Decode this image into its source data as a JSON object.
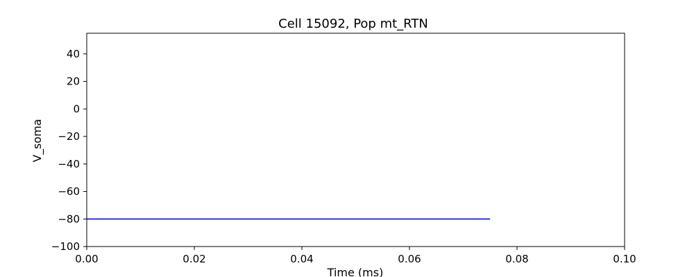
{
  "chart_data": {
    "type": "line",
    "title": "Cell 15092, Pop mt_RTN",
    "xlabel": "Time (ms)",
    "ylabel": "V_soma",
    "xlim": [
      0,
      0.1
    ],
    "ylim": [
      -100,
      55
    ],
    "xticks": [
      0.0,
      0.02,
      0.04,
      0.06,
      0.08,
      0.1
    ],
    "xtick_labels": [
      "0.00",
      "0.02",
      "0.04",
      "0.06",
      "0.08",
      "0.10"
    ],
    "yticks": [
      -100,
      -80,
      -60,
      -40,
      -20,
      0,
      20,
      40
    ],
    "ytick_labels": [
      "−100",
      "−80",
      "−60",
      "−40",
      "−20",
      "0",
      "20",
      "40"
    ],
    "grid": false,
    "series": [
      {
        "color": "#0000cc",
        "x": [
          0.0,
          0.075
        ],
        "y": [
          -80,
          -80
        ]
      }
    ]
  }
}
